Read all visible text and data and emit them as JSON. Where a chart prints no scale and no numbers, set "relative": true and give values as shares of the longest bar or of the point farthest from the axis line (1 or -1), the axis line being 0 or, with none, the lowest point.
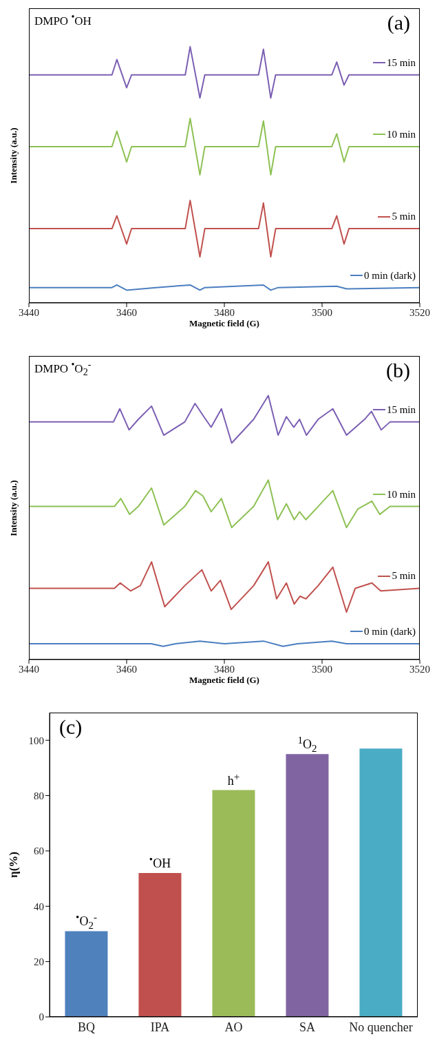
{
  "chart_data": [
    {
      "type": "line",
      "title": "(a)",
      "annotations": [
        "DMPO $^{•}$OH"
      ],
      "xlabel": "Magnetic field (G)",
      "ylabel": "Intensity (a.u.)",
      "relative": true,
      "xlim": [
        3440,
        3520
      ],
      "xticks": [
        3440,
        3460,
        3480,
        3500,
        3520
      ],
      "legend": "right",
      "x": [
        3440,
        3457,
        3458,
        3460,
        3461,
        3472,
        3473,
        3475,
        3476,
        3487,
        3488,
        3489.5,
        3490.5,
        3502,
        3503,
        3504.5,
        3505.5,
        3520
      ],
      "series": [
        {
          "name": "15 min",
          "color": "#7b5fb3",
          "values": [
            0.89,
            0.89,
            0.95,
            0.84,
            0.89,
            0.89,
            1.0,
            0.8,
            0.89,
            0.89,
            0.99,
            0.8,
            0.89,
            0.89,
            0.94,
            0.85,
            0.89,
            0.89
          ]
        },
        {
          "name": "10 min",
          "color": "#8dc153",
          "values": [
            0.61,
            0.61,
            0.67,
            0.55,
            0.61,
            0.61,
            0.72,
            0.5,
            0.61,
            0.61,
            0.71,
            0.5,
            0.61,
            0.61,
            0.66,
            0.55,
            0.61,
            0.61
          ]
        },
        {
          "name": "5 min",
          "color": "#c0504d",
          "values": [
            0.29,
            0.29,
            0.34,
            0.23,
            0.29,
            0.29,
            0.4,
            0.18,
            0.29,
            0.29,
            0.39,
            0.18,
            0.29,
            0.29,
            0.34,
            0.23,
            0.29,
            0.29
          ]
        },
        {
          "name": "0 min (dark)",
          "color": "#4a7ec0",
          "x": [
            3440,
            3457,
            3458,
            3460,
            3466,
            3473,
            3475,
            3476,
            3488,
            3489.5,
            3491,
            3503,
            3505,
            3520
          ],
          "values": [
            0.06,
            0.06,
            0.07,
            0.05,
            0.06,
            0.07,
            0.05,
            0.06,
            0.07,
            0.05,
            0.06,
            0.065,
            0.055,
            0.06
          ]
        }
      ]
    },
    {
      "type": "line",
      "title": "(b)",
      "annotations": [
        "DMPO $^{•}$O$_{2}$$^{-}$"
      ],
      "xlabel": "Magnetic field (G)",
      "ylabel": "Intensity (a.u.)",
      "relative": true,
      "xlim": [
        3440,
        3520
      ],
      "xticks": [
        3440,
        3460,
        3480,
        3500,
        3520
      ],
      "legend": "right",
      "series": [
        {
          "name": "15 min",
          "color": "#7b5fb3",
          "x": [
            3440,
            3457.3,
            3458.6,
            3460.5,
            3462.4,
            3465.1,
            3467.6,
            3471.9,
            3474,
            3475.8,
            3477.3,
            3479.4,
            3481.5,
            3486,
            3489,
            3491,
            3492.7,
            3494.2,
            3495.4,
            3496.8,
            3499.2,
            3502.2,
            3505,
            3508.7,
            3510.1,
            3512.1,
            3513.9,
            3520
          ],
          "values": [
            0.9,
            0.9,
            0.95,
            0.87,
            0.91,
            0.96,
            0.85,
            0.9,
            0.97,
            0.92,
            0.88,
            0.95,
            0.82,
            0.91,
            1.0,
            0.85,
            0.92,
            0.88,
            0.91,
            0.85,
            0.91,
            0.95,
            0.85,
            0.91,
            0.94,
            0.87,
            0.9,
            0.9
          ]
        },
        {
          "name": "10 min",
          "color": "#8dc153",
          "x": [
            3440,
            3457.5,
            3458.8,
            3460.6,
            3462.4,
            3465.1,
            3467.6,
            3471.9,
            3474.1,
            3475.6,
            3477.3,
            3479.4,
            3481.5,
            3486,
            3489,
            3490.9,
            3492.7,
            3494.3,
            3495.4,
            3496.7,
            3499.2,
            3502.2,
            3505,
            3507.3,
            3510.2,
            3511.8,
            3513.9,
            3520
          ],
          "values": [
            0.58,
            0.58,
            0.61,
            0.55,
            0.58,
            0.65,
            0.51,
            0.58,
            0.64,
            0.62,
            0.56,
            0.61,
            0.5,
            0.58,
            0.68,
            0.53,
            0.59,
            0.53,
            0.56,
            0.53,
            0.58,
            0.64,
            0.5,
            0.57,
            0.6,
            0.55,
            0.58,
            0.58
          ]
        },
        {
          "name": "5 min",
          "color": "#c0504d",
          "x": [
            3440,
            3457.5,
            3458.7,
            3460.8,
            3462.8,
            3465.1,
            3467.8,
            3471.9,
            3475.4,
            3477.3,
            3479.2,
            3481.4,
            3486,
            3489,
            3490.7,
            3492.7,
            3494.3,
            3495.5,
            3496.7,
            3499.2,
            3502.2,
            3505,
            3506.8,
            3510.2,
            3512,
            3520
          ],
          "values": [
            0.27,
            0.27,
            0.29,
            0.26,
            0.28,
            0.37,
            0.2,
            0.28,
            0.34,
            0.26,
            0.3,
            0.19,
            0.28,
            0.37,
            0.23,
            0.29,
            0.21,
            0.24,
            0.23,
            0.28,
            0.35,
            0.18,
            0.27,
            0.29,
            0.26,
            0.27
          ]
        },
        {
          "name": "0 min (dark)",
          "color": "#4a7ec0",
          "x": [
            3440,
            3465,
            3467.5,
            3470,
            3475,
            3480,
            3488,
            3492,
            3495,
            3502,
            3505,
            3520
          ],
          "values": [
            0.06,
            0.06,
            0.05,
            0.06,
            0.07,
            0.06,
            0.07,
            0.05,
            0.06,
            0.07,
            0.06,
            0.06
          ]
        }
      ]
    },
    {
      "type": "bar",
      "title": "(c)",
      "ylabel": "η(%)",
      "categories": [
        "BQ",
        "IPA",
        "AO",
        "SA",
        "No quencher"
      ],
      "values": [
        31,
        52,
        82,
        95,
        97
      ],
      "colors": [
        "#4f81bd",
        "#c0504d",
        "#9bbb59",
        "#8064a2",
        "#4bacc6"
      ],
      "ylim": [
        0,
        110
      ],
      "yticks": [
        0,
        20,
        40,
        60,
        80,
        100
      ],
      "annotations": [
        {
          "text": "$^{•}$O$_{2}$$^{-}$",
          "x": "BQ",
          "y": 31
        },
        {
          "text": "$^{•}$OH",
          "x": "IPA",
          "y": 52
        },
        {
          "text": "h$^{+}$",
          "x": "AO",
          "y": 82
        },
        {
          "text": "$^{1}$O$_{2}$",
          "x": "SA",
          "y": 95
        }
      ]
    }
  ]
}
